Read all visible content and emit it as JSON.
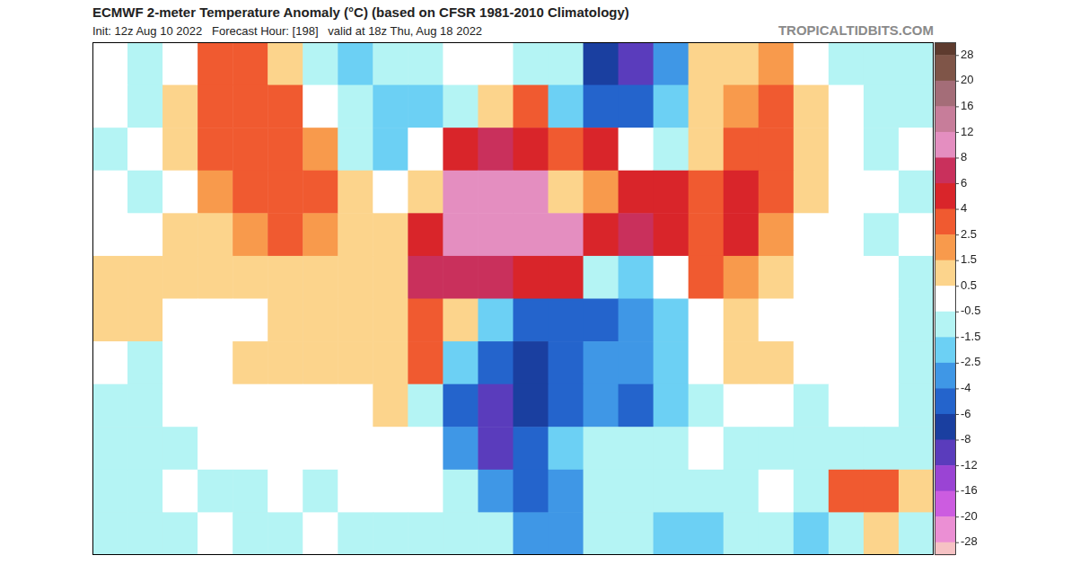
{
  "chart_data": {
    "type": "heatmap",
    "title": "ECMWF 2-meter Temperature Anomaly (°C) (based on CFSR 1981-2010 Climatology)",
    "subtitle": "Init: 12z Aug 10 2022   Forecast Hour: [198]   valid at 18z Thu, Aug 18 2022",
    "annotation": "TROPICALTIDBITS.COM",
    "tick_labels": false,
    "cells": [
      [
        0,
        -1,
        0.3,
        3,
        3,
        1,
        -1,
        -2,
        -1,
        -1,
        0,
        0,
        -1,
        -1,
        -6,
        -8,
        -3,
        1,
        1,
        2,
        0,
        -1,
        -1,
        -1
      ],
      [
        -0.3,
        -1,
        1,
        3,
        4,
        3,
        0,
        -1,
        -2,
        -2,
        -1,
        1,
        3,
        -2,
        -4,
        -4,
        -2,
        1,
        2,
        3,
        1,
        -0.3,
        -1,
        -1
      ],
      [
        -1,
        -0.3,
        1,
        3,
        4,
        4,
        2,
        -1,
        -1.5,
        0.3,
        6,
        8,
        5,
        4,
        5,
        0,
        -1,
        1.5,
        3,
        3,
        1.5,
        -0.3,
        -1,
        -0.3
      ],
      [
        -0.3,
        -1,
        0.3,
        2,
        3,
        4,
        3,
        1,
        0,
        1,
        10,
        10,
        10,
        1.5,
        2,
        6,
        5,
        3,
        6,
        3,
        1,
        -0.3,
        -0.3,
        -1
      ],
      [
        0.3,
        -0.3,
        1,
        1.5,
        2,
        3,
        2.5,
        1.5,
        1,
        6,
        10,
        10,
        10,
        10,
        6,
        8,
        6,
        4,
        5,
        2,
        0.3,
        -0.3,
        -1,
        -0.3
      ],
      [
        1,
        1.5,
        1,
        1,
        1.5,
        1,
        1.5,
        1.5,
        1.5,
        8,
        8,
        8,
        6,
        6,
        -1,
        -2,
        -0.3,
        3,
        2,
        1,
        0.3,
        -0.3,
        -0.3,
        -1
      ],
      [
        1,
        1,
        0.3,
        0.3,
        0.3,
        1,
        1,
        1,
        1.5,
        4,
        1,
        -2,
        -4,
        -4,
        -4,
        -3,
        -2,
        0.3,
        1,
        0.3,
        -0.3,
        0.3,
        -0.3,
        -1
      ],
      [
        -0.3,
        -1,
        -0.3,
        0.3,
        1,
        1,
        1,
        1,
        1.5,
        3,
        -2,
        -4,
        -6,
        -4,
        -3,
        -3,
        -2,
        -0.3,
        1,
        1,
        -0.3,
        -0.3,
        -0.3,
        -1
      ],
      [
        -1,
        -1,
        -0.3,
        -0.3,
        0.3,
        0.3,
        0.3,
        0.3,
        1,
        -1,
        -4,
        -8,
        -6,
        -4,
        -3,
        -4,
        -2,
        -1,
        -0.3,
        -0.3,
        -1,
        -0.3,
        -0.3,
        -1
      ],
      [
        -1,
        -1,
        -1,
        -0.3,
        -0.3,
        -0.3,
        -0.3,
        -0.3,
        0.3,
        -0.3,
        -3,
        -8,
        -4,
        -2,
        -1,
        -1,
        -1,
        -0.3,
        -1,
        -1,
        -1,
        -1,
        -1,
        -1
      ],
      [
        -1,
        -1,
        -0.3,
        -1,
        -1,
        -0.3,
        -1,
        -0.3,
        -0.3,
        -0.3,
        -1,
        -3,
        -4,
        -3,
        -1,
        -1,
        -1,
        -1,
        -1,
        -0.3,
        -1,
        3,
        4,
        1
      ],
      [
        -1,
        -1,
        -1,
        -0.3,
        -1,
        -1,
        -0.3,
        -1,
        -1,
        -1,
        -1,
        -1,
        -3,
        -3,
        -1,
        -1,
        -1.5,
        -2,
        -1,
        -1,
        -2,
        -1,
        1,
        -1
      ]
    ],
    "colorbar": {
      "ticks": [
        28,
        20,
        16,
        12,
        8,
        6,
        4,
        2.5,
        1.5,
        0.5,
        -0.5,
        -1.5,
        -2.5,
        -4,
        -6,
        -8,
        -12,
        -16,
        -20,
        -28
      ],
      "colors": [
        "#5e3b2e",
        "#7f5548",
        "#a46d78",
        "#c77d9a",
        "#e48ec0",
        "#c9305c",
        "#d9252a",
        "#f05a30",
        "#f89a4c",
        "#fcd48c",
        "#ffffff",
        "#b4f4f4",
        "#6cd0f4",
        "#3f97e6",
        "#2464cc",
        "#1a3fa0",
        "#5a3cbc",
        "#9a44d4",
        "#cc5ce0",
        "#eb8fd4",
        "#f6c2c4"
      ]
    }
  }
}
